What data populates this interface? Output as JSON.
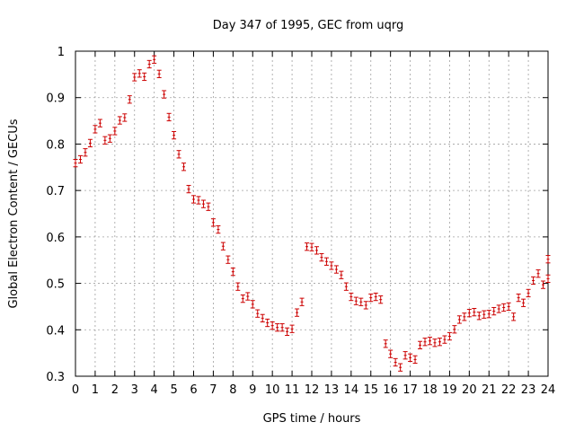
{
  "chart_data": {
    "type": "scatter",
    "title": "Day 347 of 1995, GEC from uqrg",
    "xlabel": "GPS time / hours",
    "ylabel": "Global Electron Content / GECUs",
    "xlim": [
      0,
      24
    ],
    "ylim": [
      0.3,
      1.0
    ],
    "xticks": [
      "0",
      "1",
      "2",
      "3",
      "4",
      "5",
      "6",
      "7",
      "8",
      "9",
      "10",
      "11",
      "12",
      "13",
      "14",
      "15",
      "16",
      "17",
      "18",
      "19",
      "20",
      "21",
      "22",
      "23",
      "24"
    ],
    "yticks": [
      "0.3",
      "0.4",
      "0.5",
      "0.6",
      "0.7",
      "0.8",
      "0.9",
      "1"
    ],
    "grid": true,
    "error_bars": true,
    "error_halfwidth": 0.008,
    "marker_color": "#cc0000",
    "series": [
      {
        "points": [
          [
            0.0,
            0.759
          ],
          [
            0.25,
            0.767
          ],
          [
            0.5,
            0.782
          ],
          [
            0.75,
            0.802
          ],
          [
            1.0,
            0.832
          ],
          [
            1.25,
            0.845
          ],
          [
            1.5,
            0.808
          ],
          [
            1.75,
            0.812
          ],
          [
            2.0,
            0.828
          ],
          [
            2.25,
            0.851
          ],
          [
            2.5,
            0.857
          ],
          [
            2.75,
            0.896
          ],
          [
            3.0,
            0.944
          ],
          [
            3.25,
            0.952
          ],
          [
            3.5,
            0.945
          ],
          [
            3.75,
            0.972
          ],
          [
            4.0,
            0.982
          ],
          [
            4.25,
            0.951
          ],
          [
            4.5,
            0.907
          ],
          [
            4.75,
            0.858
          ],
          [
            5.0,
            0.819
          ],
          [
            5.25,
            0.778
          ],
          [
            5.5,
            0.751
          ],
          [
            5.75,
            0.703
          ],
          [
            6.0,
            0.681
          ],
          [
            6.25,
            0.679
          ],
          [
            6.5,
            0.671
          ],
          [
            6.75,
            0.665
          ],
          [
            7.0,
            0.631
          ],
          [
            7.25,
            0.616
          ],
          [
            7.5,
            0.58
          ],
          [
            7.75,
            0.551
          ],
          [
            8.0,
            0.525
          ],
          [
            8.25,
            0.493
          ],
          [
            8.5,
            0.467
          ],
          [
            8.75,
            0.472
          ],
          [
            9.0,
            0.455
          ],
          [
            9.25,
            0.435
          ],
          [
            9.5,
            0.425
          ],
          [
            9.75,
            0.415
          ],
          [
            10.0,
            0.409
          ],
          [
            10.25,
            0.405
          ],
          [
            10.5,
            0.405
          ],
          [
            10.75,
            0.396
          ],
          [
            11.0,
            0.402
          ],
          [
            11.25,
            0.437
          ],
          [
            11.5,
            0.46
          ],
          [
            11.75,
            0.579
          ],
          [
            12.0,
            0.578
          ],
          [
            12.25,
            0.571
          ],
          [
            12.5,
            0.556
          ],
          [
            12.75,
            0.547
          ],
          [
            13.0,
            0.538
          ],
          [
            13.25,
            0.53
          ],
          [
            13.5,
            0.518
          ],
          [
            13.75,
            0.493
          ],
          [
            14.0,
            0.471
          ],
          [
            14.25,
            0.462
          ],
          [
            14.5,
            0.46
          ],
          [
            14.75,
            0.453
          ],
          [
            15.0,
            0.469
          ],
          [
            15.25,
            0.471
          ],
          [
            15.5,
            0.465
          ],
          [
            15.75,
            0.37
          ],
          [
            16.0,
            0.348
          ],
          [
            16.25,
            0.33
          ],
          [
            16.5,
            0.319
          ],
          [
            16.75,
            0.345
          ],
          [
            17.0,
            0.34
          ],
          [
            17.25,
            0.336
          ],
          [
            17.5,
            0.367
          ],
          [
            17.75,
            0.374
          ],
          [
            18.0,
            0.376
          ],
          [
            18.25,
            0.372
          ],
          [
            18.5,
            0.374
          ],
          [
            18.75,
            0.379
          ],
          [
            19.0,
            0.386
          ],
          [
            19.25,
            0.401
          ],
          [
            19.5,
            0.422
          ],
          [
            19.75,
            0.428
          ],
          [
            20.0,
            0.436
          ],
          [
            20.25,
            0.438
          ],
          [
            20.5,
            0.43
          ],
          [
            20.75,
            0.433
          ],
          [
            21.0,
            0.434
          ],
          [
            21.25,
            0.44
          ],
          [
            21.5,
            0.445
          ],
          [
            21.75,
            0.448
          ],
          [
            22.0,
            0.45
          ],
          [
            22.25,
            0.428
          ],
          [
            22.5,
            0.469
          ],
          [
            22.75,
            0.458
          ],
          [
            23.0,
            0.479
          ],
          [
            23.25,
            0.506
          ],
          [
            23.5,
            0.521
          ],
          [
            23.75,
            0.497
          ],
          [
            24.0,
            0.51
          ],
          [
            24.25,
            0.552
          ]
        ]
      }
    ]
  }
}
